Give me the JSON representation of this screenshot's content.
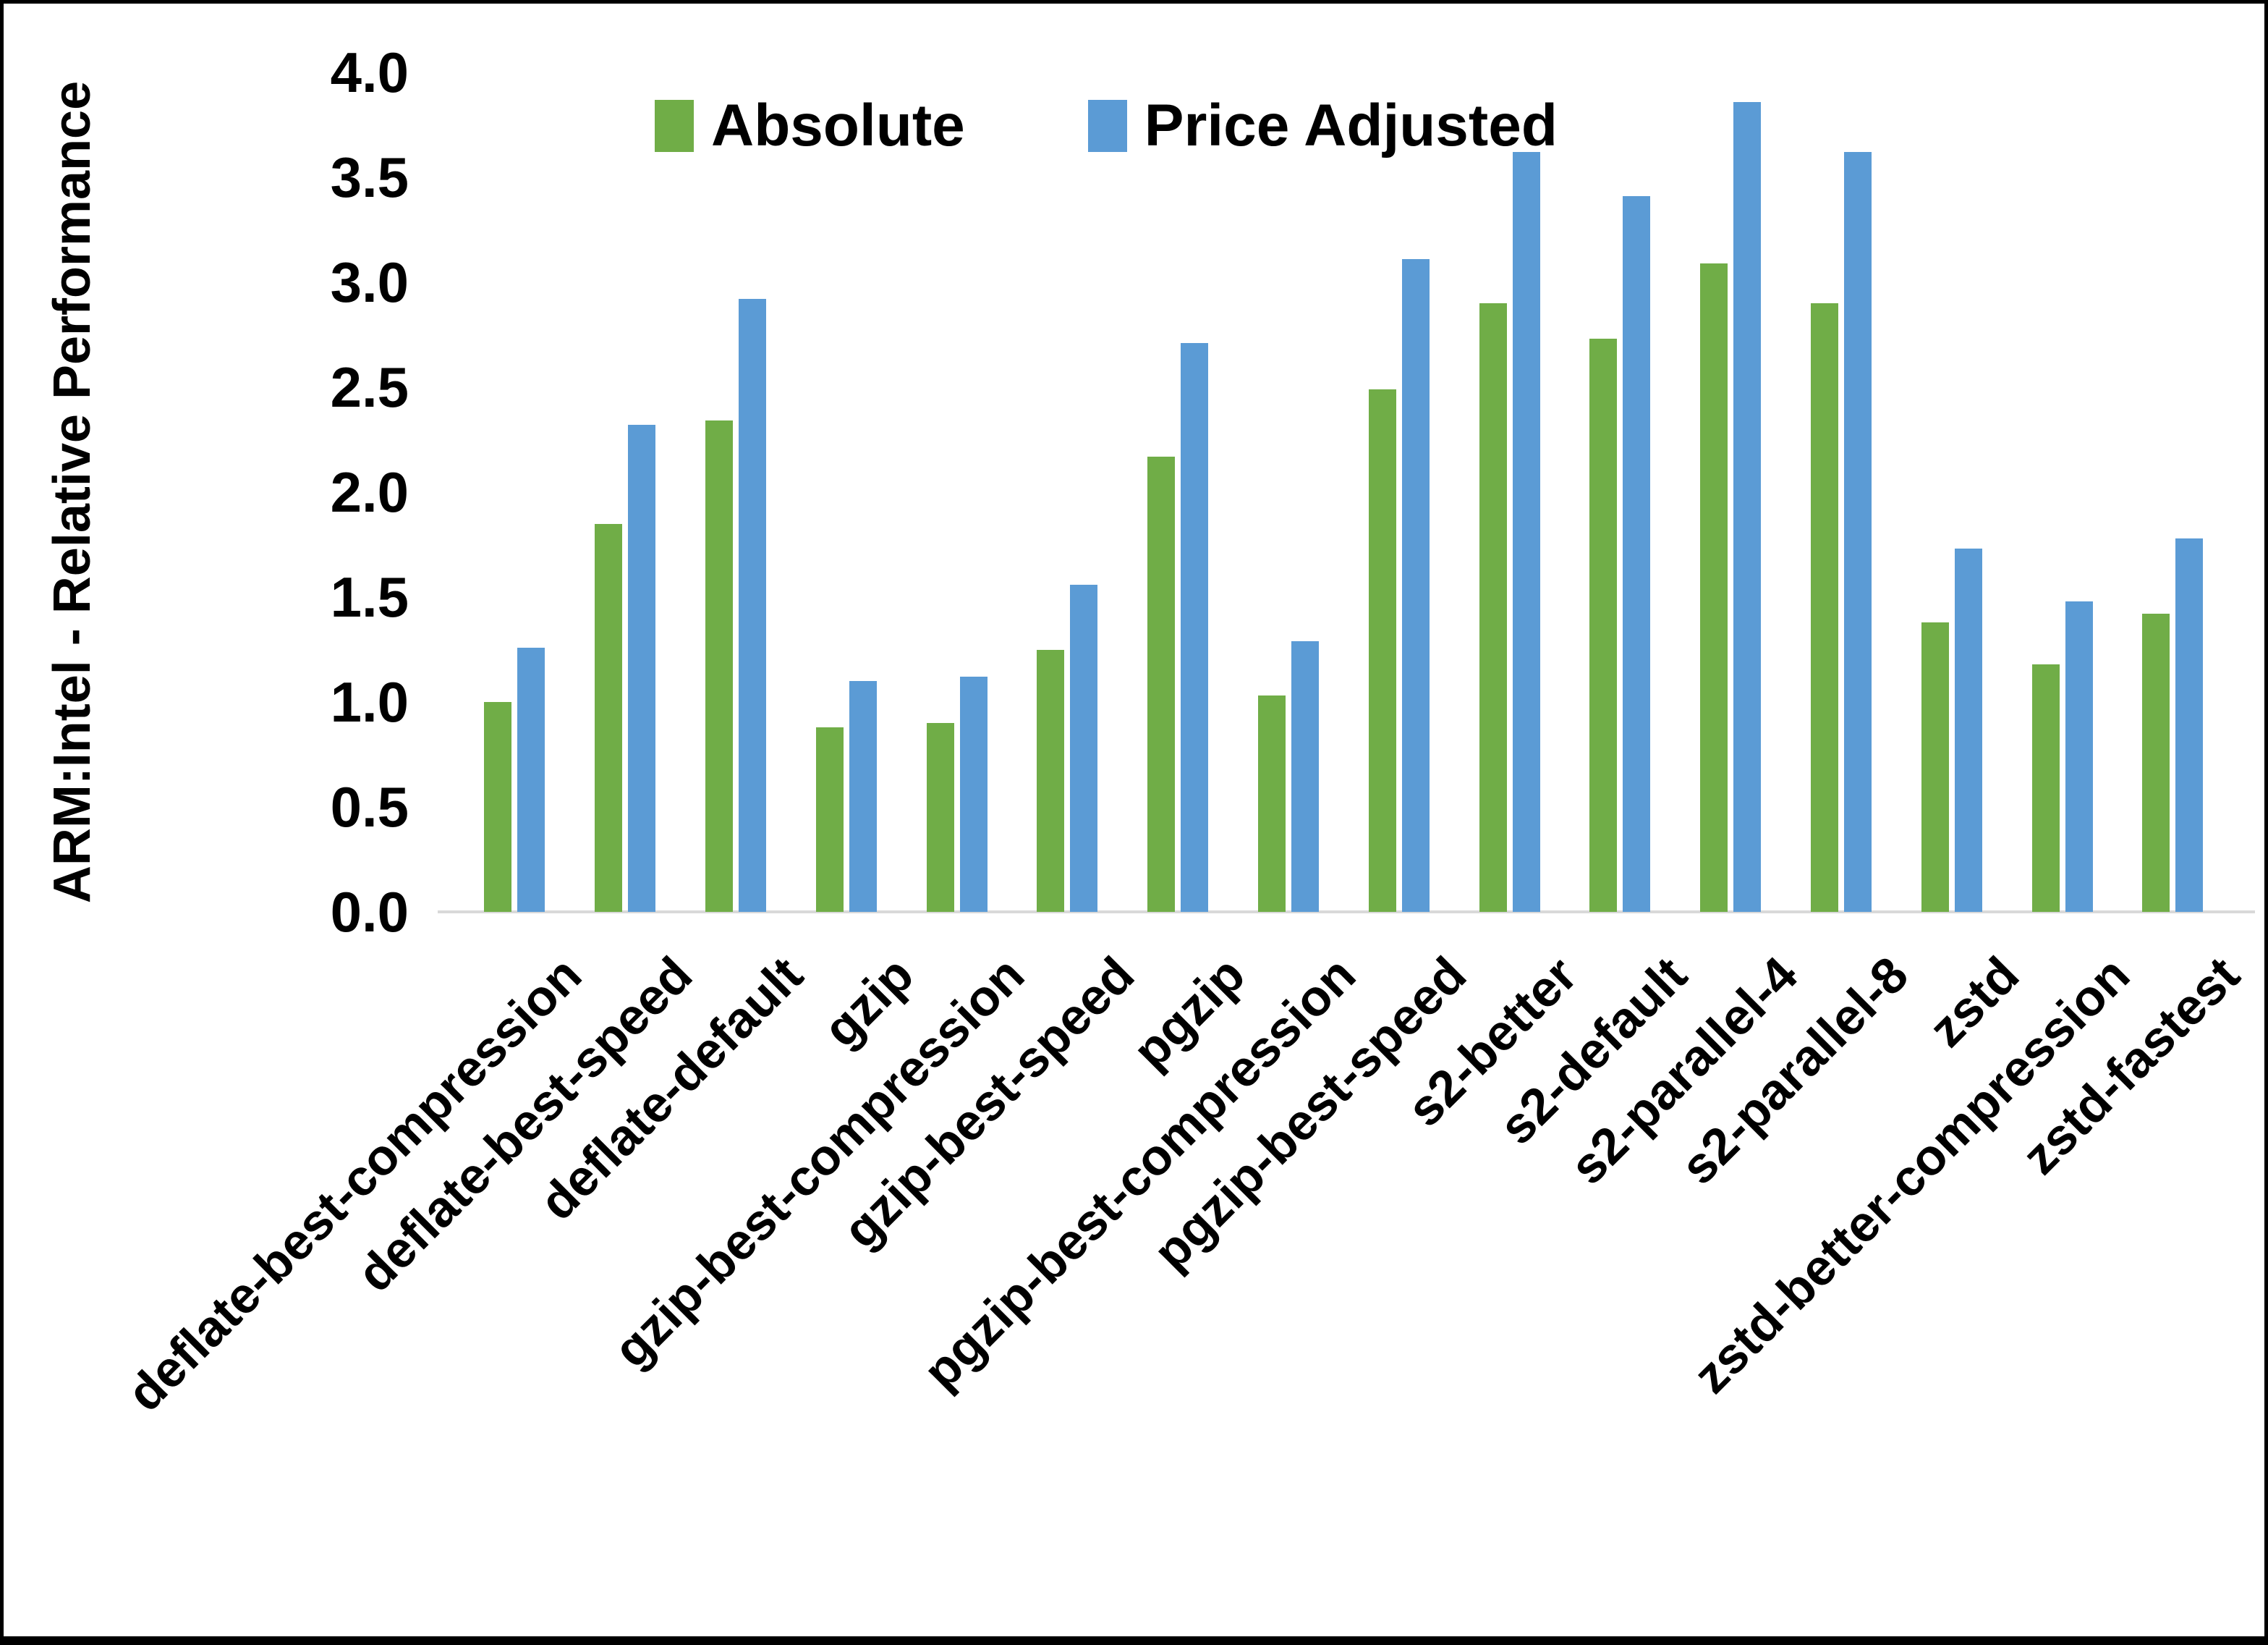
{
  "chart_data": {
    "type": "bar",
    "title": "",
    "ylabel": "ARM:Intel - Relative Performance",
    "xlabel": "",
    "ylim": [
      0.0,
      4.0
    ],
    "yticks": [
      0.0,
      0.5,
      1.0,
      1.5,
      2.0,
      2.5,
      3.0,
      3.5,
      4.0
    ],
    "grid": false,
    "legend_position": "top-center",
    "background_color": "#FFFFFF",
    "axis_line_color": "#D9D9D9",
    "text_color": "#000000",
    "categories": [
      "deflate-best-compression",
      "deflate-best-speed",
      "deflate-default",
      "gzip",
      "gzip-best-compression",
      "gzip-best-speed",
      "pgzip",
      "pgzip-best-compression",
      "pgzip-best-speed",
      "s2-better",
      "s2-default",
      "s2-parallel-4",
      "s2-parallel-8",
      "zstd",
      "zstd-better-compression",
      "zstd-fastest"
    ],
    "series": [
      {
        "name": "Absolute",
        "color": "#70AD47",
        "values": [
          1.0,
          1.85,
          2.34,
          0.88,
          0.9,
          1.25,
          2.17,
          1.03,
          2.49,
          2.9,
          2.73,
          3.09,
          2.9,
          1.38,
          1.18,
          1.42
        ]
      },
      {
        "name": "Price Adjusted",
        "color": "#5B9BD5",
        "values": [
          1.26,
          2.32,
          2.92,
          1.1,
          1.12,
          1.56,
          2.71,
          1.29,
          3.11,
          3.62,
          3.41,
          3.86,
          3.62,
          1.73,
          1.48,
          1.78
        ]
      }
    ]
  }
}
